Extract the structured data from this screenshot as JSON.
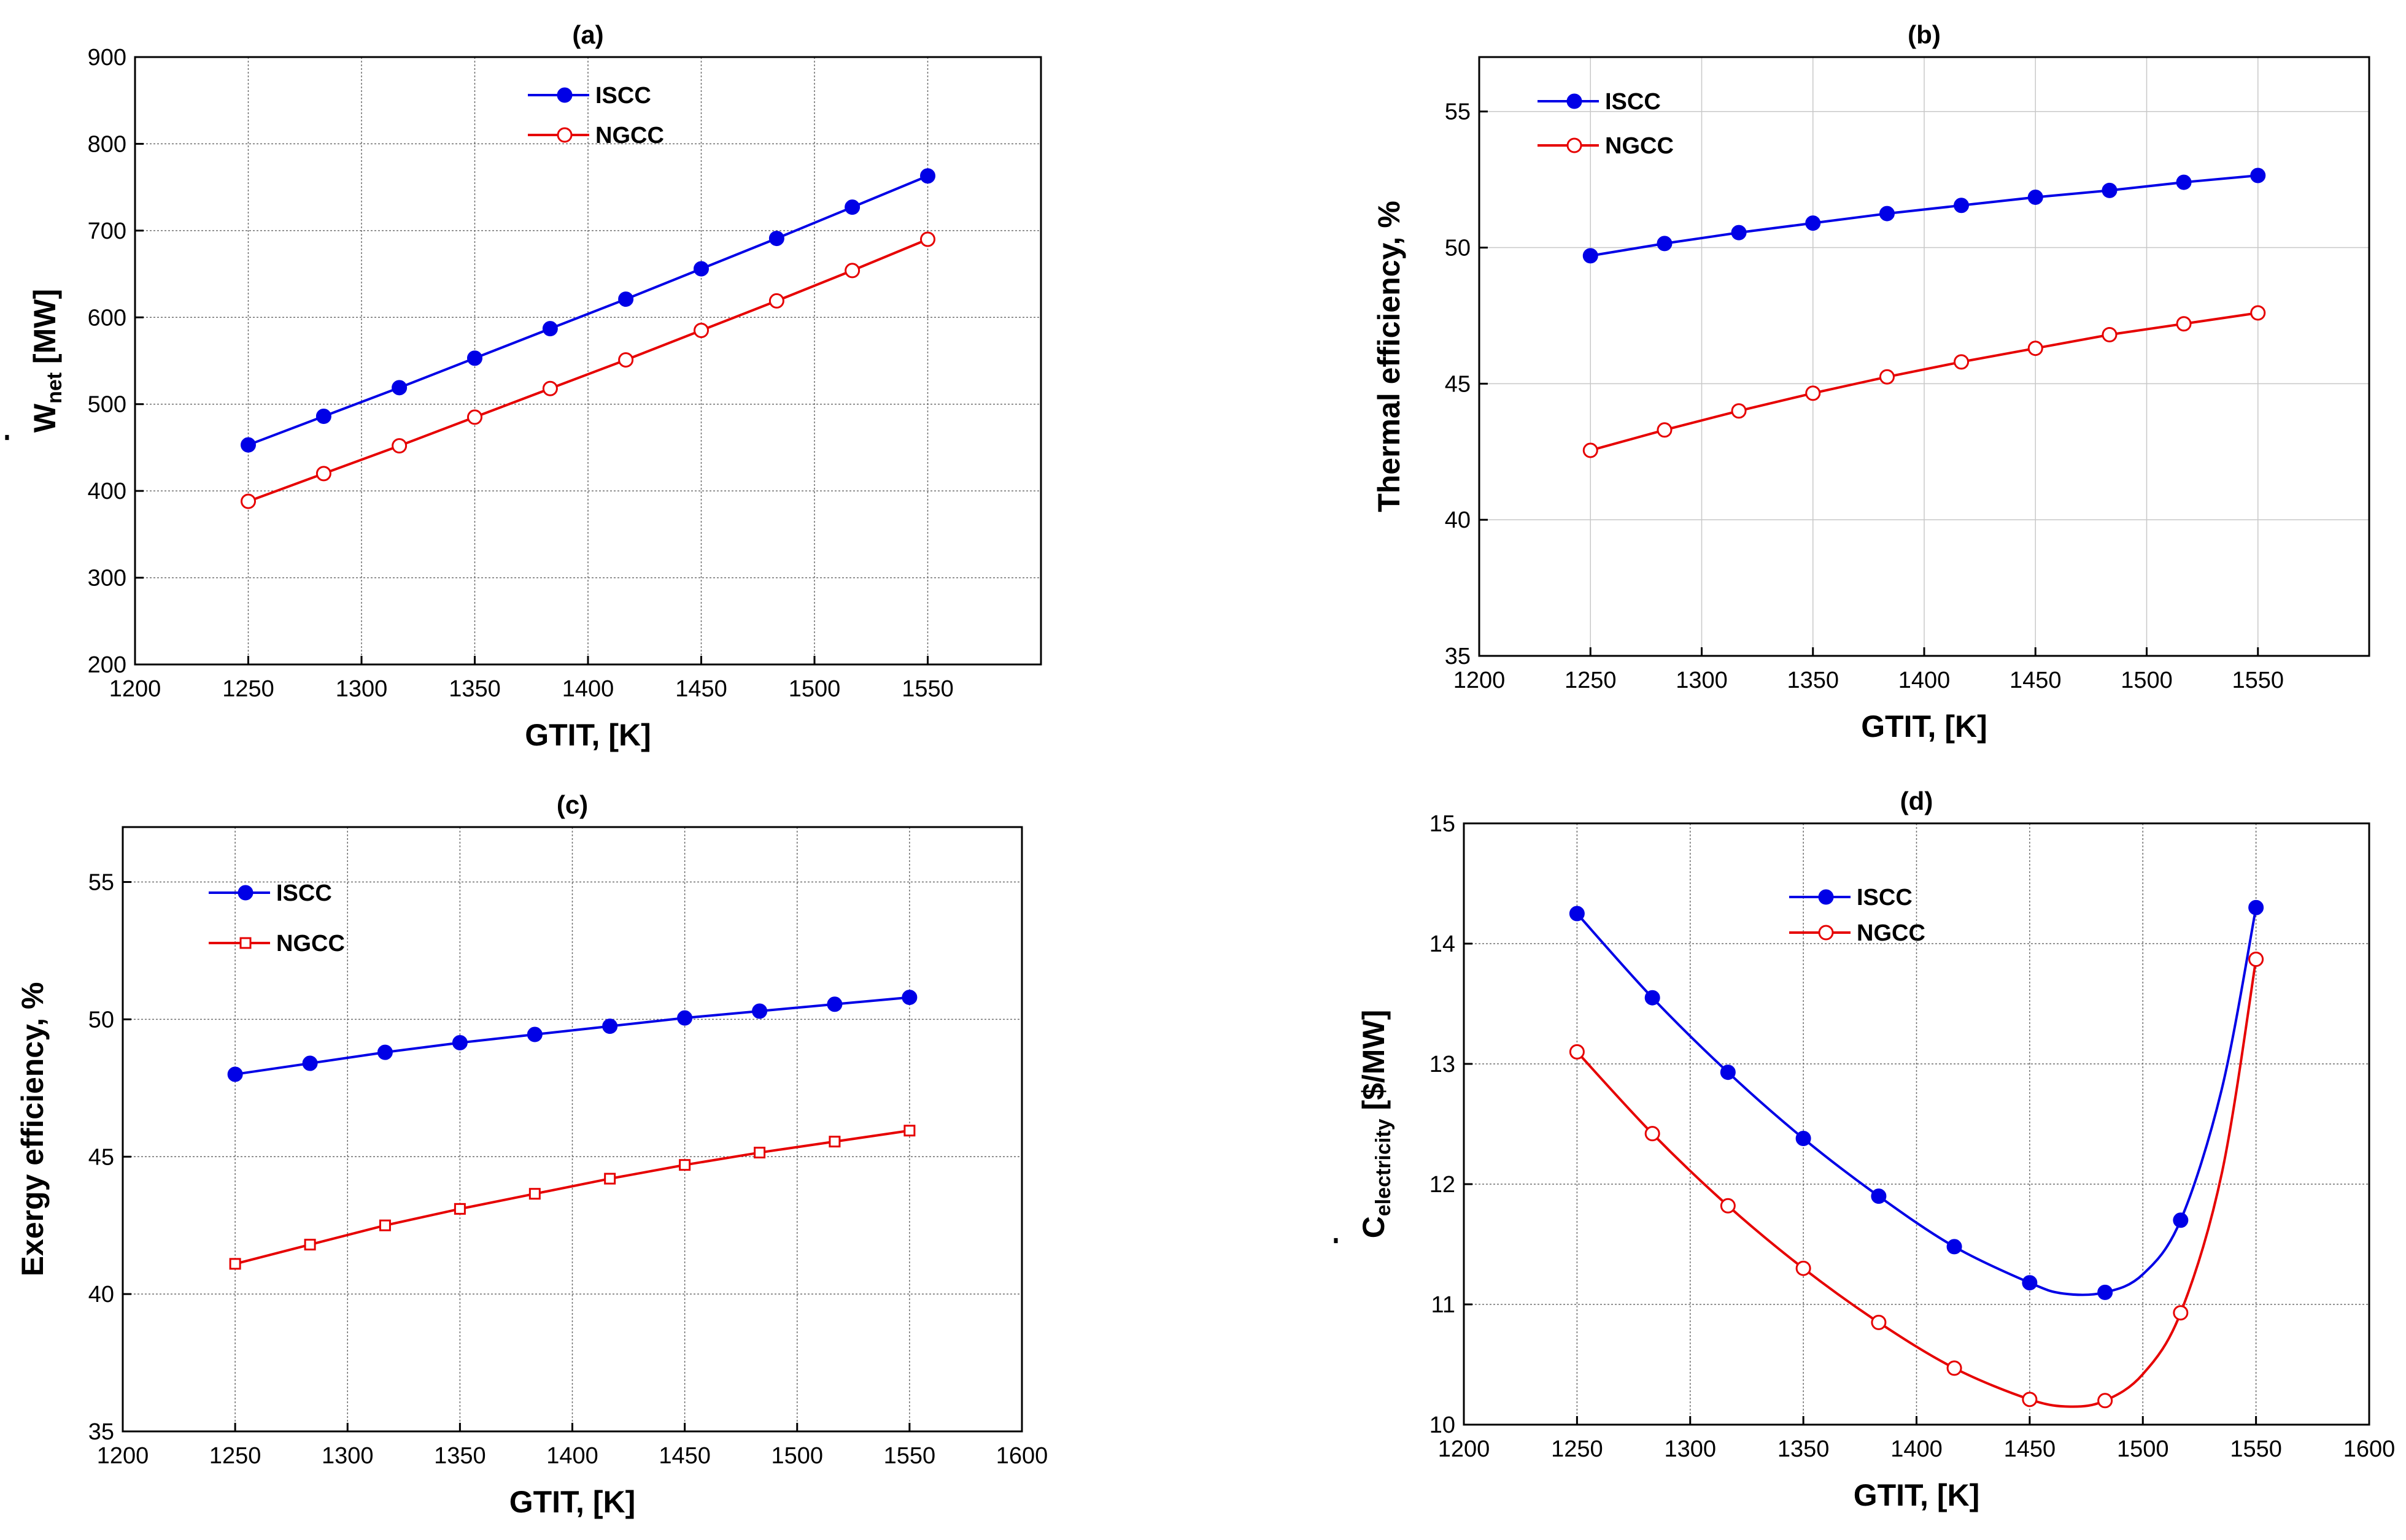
{
  "figure": {
    "description_panels": [
      "a",
      "b",
      "c",
      "d"
    ]
  },
  "colors": {
    "isscc": "#0000e6",
    "ngcc": "#e60000",
    "axis": "#000000"
  },
  "chart_data": [
    {
      "id": "a",
      "type": "line",
      "title": "(a)",
      "xlabel": "GTIT, [K]",
      "ylabel": {
        "main": "W",
        "sub": "net",
        "unit": "[MW]",
        "dot": "˙"
      },
      "xlim": [
        1200,
        1600
      ],
      "ylim": [
        200,
        900
      ],
      "xticks": [
        1200,
        1250,
        1300,
        1350,
        1400,
        1450,
        1500,
        1550
      ],
      "yticks": [
        200,
        300,
        400,
        500,
        600,
        700,
        800,
        900
      ],
      "grid": "dashed",
      "legend_position": "top-center",
      "x": [
        1250,
        1283.3,
        1316.7,
        1350,
        1383.3,
        1416.7,
        1450,
        1483.3,
        1516.7,
        1550
      ],
      "series": [
        {
          "name": "ISCC",
          "marker": "filled-circle",
          "color": "#0000e6",
          "values": [
            453,
            486,
            519,
            553,
            587,
            621,
            656,
            691,
            727,
            763
          ]
        },
        {
          "name": "NGCC",
          "marker": "open-circle",
          "color": "#e60000",
          "values": [
            388,
            420,
            452,
            485,
            518,
            551,
            585,
            619,
            654,
            690
          ]
        }
      ]
    },
    {
      "id": "b",
      "type": "line",
      "title": "(b)",
      "xlabel": "GTIT, [K]",
      "ylabel": {
        "main": "Thermal efficiency, %"
      },
      "xlim": [
        1200,
        1600
      ],
      "ylim": [
        35,
        57
      ],
      "xticks": [
        1200,
        1250,
        1300,
        1350,
        1400,
        1450,
        1500,
        1550
      ],
      "yticks": [
        35,
        40,
        45,
        50,
        55
      ],
      "grid": "light",
      "legend_position": "top-left",
      "x": [
        1250,
        1283.3,
        1316.7,
        1350,
        1383.3,
        1416.7,
        1450,
        1483.3,
        1516.7,
        1550
      ],
      "series": [
        {
          "name": "ISCC",
          "marker": "filled-circle",
          "color": "#0000e6",
          "values": [
            49.7,
            50.15,
            50.55,
            50.9,
            51.25,
            51.55,
            51.85,
            52.1,
            52.4,
            52.65
          ]
        },
        {
          "name": "NGCC",
          "marker": "open-circle",
          "color": "#e60000",
          "values": [
            42.55,
            43.3,
            44.0,
            44.65,
            45.25,
            45.8,
            46.3,
            46.8,
            47.2,
            47.6
          ]
        }
      ]
    },
    {
      "id": "c",
      "type": "line",
      "title": "(c)",
      "xlabel": "GTIT, [K]",
      "ylabel": {
        "main": "Exergy efficiency, %"
      },
      "xlim": [
        1200,
        1600
      ],
      "ylim": [
        35,
        57
      ],
      "xticks": [
        1200,
        1250,
        1300,
        1350,
        1400,
        1450,
        1500,
        1550,
        1600
      ],
      "yticks": [
        35,
        40,
        45,
        50,
        55
      ],
      "grid": "dashed",
      "legend_position": "top-left",
      "x": [
        1250,
        1283.3,
        1316.7,
        1350,
        1383.3,
        1416.7,
        1450,
        1483.3,
        1516.7,
        1550
      ],
      "series": [
        {
          "name": "ISCC",
          "marker": "filled-circle",
          "color": "#0000e6",
          "values": [
            48.0,
            48.4,
            48.8,
            49.15,
            49.45,
            49.75,
            50.05,
            50.3,
            50.55,
            50.8
          ]
        },
        {
          "name": "NGCC",
          "marker": "open-square",
          "color": "#e60000",
          "values": [
            41.1,
            41.8,
            42.5,
            43.1,
            43.65,
            44.2,
            44.7,
            45.15,
            45.55,
            45.95
          ]
        }
      ]
    },
    {
      "id": "d",
      "type": "line",
      "title": "(d)",
      "xlabel": "GTIT, [K]",
      "ylabel": {
        "main": "C",
        "sub": "electricity",
        "unit": "[$/MW]",
        "dot": "˙"
      },
      "xlim": [
        1200,
        1600
      ],
      "ylim": [
        10,
        15
      ],
      "xticks": [
        1200,
        1250,
        1300,
        1350,
        1400,
        1450,
        1500,
        1550,
        1600
      ],
      "yticks": [
        10,
        11,
        12,
        13,
        14,
        15
      ],
      "grid": "dashed",
      "legend_position": "top-center",
      "x": [
        1250,
        1283.3,
        1316.7,
        1350,
        1383.3,
        1416.7,
        1450,
        1483.3,
        1516.7,
        1550
      ],
      "series": [
        {
          "name": "ISCC",
          "marker": "filled-circle",
          "color": "#0000e6",
          "values": [
            14.25,
            13.55,
            12.93,
            12.38,
            11.9,
            11.48,
            11.18,
            11.1,
            11.7,
            14.3
          ],
          "curve": [
            [
              1250,
              14.25
            ],
            [
              1283.3,
              13.55
            ],
            [
              1316.7,
              12.93
            ],
            [
              1350,
              12.38
            ],
            [
              1383.3,
              11.9
            ],
            [
              1416.7,
              11.48
            ],
            [
              1450,
              11.18
            ],
            [
              1465,
              11.09
            ],
            [
              1483.3,
              11.1
            ],
            [
              1500,
              11.25
            ],
            [
              1516.7,
              11.7
            ],
            [
              1535,
              12.8
            ],
            [
              1550,
              14.3
            ]
          ]
        },
        {
          "name": "NGCC",
          "marker": "open-circle",
          "color": "#e60000",
          "values": [
            13.1,
            12.42,
            11.82,
            11.3,
            10.85,
            10.47,
            10.21,
            10.2,
            10.93,
            13.87
          ],
          "curve": [
            [
              1250,
              13.1
            ],
            [
              1283.3,
              12.42
            ],
            [
              1316.7,
              11.82
            ],
            [
              1350,
              11.3
            ],
            [
              1383.3,
              10.85
            ],
            [
              1416.7,
              10.47
            ],
            [
              1450,
              10.21
            ],
            [
              1468,
              10.15
            ],
            [
              1483.3,
              10.2
            ],
            [
              1500,
              10.42
            ],
            [
              1516.7,
              10.93
            ],
            [
              1535,
              12.1
            ],
            [
              1550,
              13.87
            ]
          ]
        }
      ]
    }
  ]
}
